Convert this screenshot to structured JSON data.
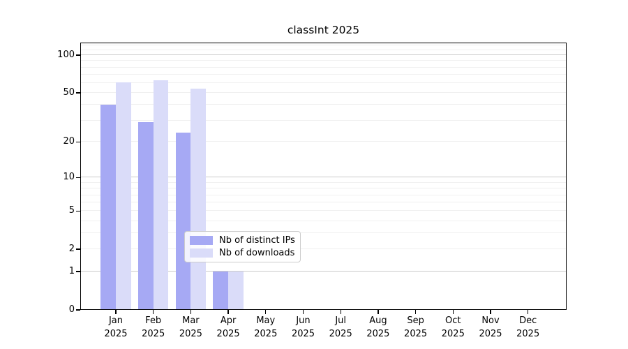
{
  "title": "classInt 2025",
  "chart_data": {
    "type": "bar",
    "title": "classInt 2025",
    "categories": [
      "Jan 2025",
      "Feb 2025",
      "Mar 2025",
      "Apr 2025",
      "May 2025",
      "Jun 2025",
      "Jul 2025",
      "Aug 2025",
      "Sep 2025",
      "Oct 2025",
      "Nov 2025",
      "Dec 2025"
    ],
    "series": [
      {
        "name": "Nb of distinct IPs",
        "color": "#a6a9f4",
        "values": [
          40,
          29,
          24,
          1,
          0,
          0,
          0,
          0,
          0,
          0,
          0,
          0
        ]
      },
      {
        "name": "Nb of downloads",
        "color": "#dadcf9",
        "values": [
          61,
          63,
          54,
          1,
          0,
          0,
          0,
          0,
          0,
          0,
          0,
          0
        ]
      }
    ],
    "yscale": "log1p",
    "ylim": [
      0,
      126
    ],
    "yticks": [
      0,
      1,
      2,
      5,
      10,
      20,
      50,
      100
    ],
    "grid": {
      "major": [
        1,
        10,
        100
      ],
      "minor": [
        2,
        3,
        4,
        5,
        6,
        7,
        8,
        9,
        20,
        30,
        40,
        50,
        60,
        70,
        80,
        90,
        110,
        120
      ]
    },
    "legend": {
      "position": "lower center",
      "frame": true
    },
    "xlabel": "",
    "ylabel": "",
    "colors": {
      "background": "#ffffff",
      "axis": "#000000",
      "text": "#000000",
      "grid_major": "#cbcbcb",
      "grid_minor": "#f0f0f0"
    }
  }
}
